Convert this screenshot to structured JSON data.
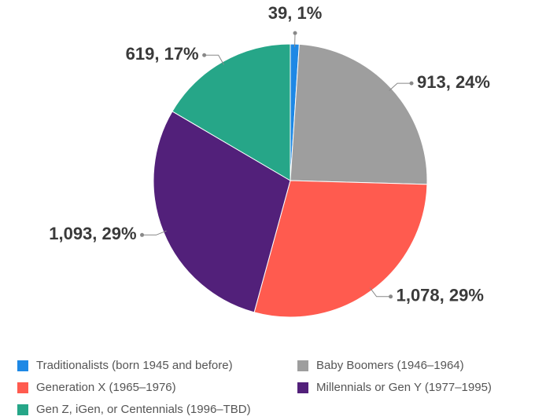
{
  "chart_data": {
    "type": "pie",
    "categories": [
      "Traditionalists (born 1945 and before)",
      "Baby Boomers (1946–1964)",
      "Generation X (1965–1976)",
      "Millennials or Gen Y (1977–1995)",
      "Gen Z, iGen, or Centennials (1996–TBD)"
    ],
    "values": [
      39,
      913,
      1078,
      1093,
      619
    ],
    "value_labels": [
      "39, 1%",
      "913, 24%",
      "1,078, 29%",
      "1,093, 29%",
      "619, 17%"
    ],
    "colors": [
      "#1e88e5",
      "#9e9e9e",
      "#ff5b4f",
      "#52207a",
      "#26a688"
    ],
    "legend": "bottom"
  }
}
